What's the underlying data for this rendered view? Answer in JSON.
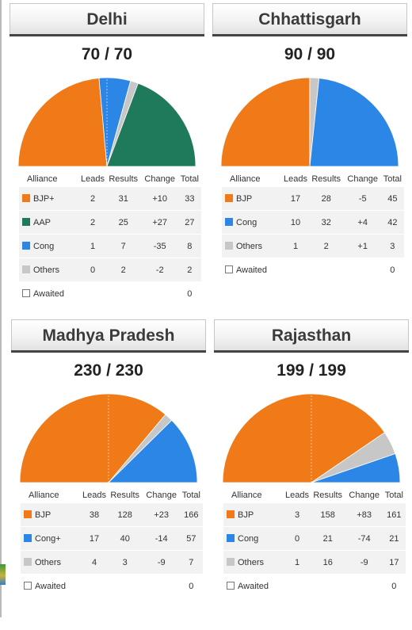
{
  "headers": [
    "Alliance",
    "Leads",
    "Results",
    "Change",
    "Total"
  ],
  "chart_data": [
    {
      "type": "pie",
      "title": "Delhi",
      "seats_declared": "70 / 70",
      "max": 70,
      "slices": [
        {
          "name": "BJP+",
          "value": 33,
          "color": "#f07a17"
        },
        {
          "name": "Cong",
          "value": 8,
          "color": "#2c86e6"
        },
        {
          "name": "Others",
          "value": 2,
          "color": "#c7c7c7"
        },
        {
          "name": "AAP",
          "value": 27,
          "color": "#1f7a5c"
        }
      ],
      "rows": [
        {
          "alliance": "BJP+",
          "leads": "2",
          "results": "31",
          "change": "+10",
          "total": "33",
          "color": "#f07a17"
        },
        {
          "alliance": "AAP",
          "leads": "2",
          "results": "25",
          "change": "+27",
          "total": "27",
          "color": "#1f7a5c"
        },
        {
          "alliance": "Cong",
          "leads": "1",
          "results": "7",
          "change": "-35",
          "total": "8",
          "color": "#2c86e6"
        },
        {
          "alliance": "Others",
          "leads": "0",
          "results": "2",
          "change": "-2",
          "total": "2",
          "color": "#c7c7c7"
        },
        {
          "alliance": "Awaited",
          "leads": "",
          "results": "",
          "change": "",
          "total": "0",
          "color": ""
        }
      ]
    },
    {
      "type": "pie",
      "title": "Chhattisgarh",
      "seats_declared": "90 / 90",
      "max": 90,
      "slices": [
        {
          "name": "BJP",
          "value": 45,
          "color": "#f07a17"
        },
        {
          "name": "Others",
          "value": 3,
          "color": "#c7c7c7"
        },
        {
          "name": "Cong",
          "value": 42,
          "color": "#2c86e6"
        }
      ],
      "rows": [
        {
          "alliance": "BJP",
          "leads": "17",
          "results": "28",
          "change": "-5",
          "total": "45",
          "color": "#f07a17"
        },
        {
          "alliance": "Cong",
          "leads": "10",
          "results": "32",
          "change": "+4",
          "total": "42",
          "color": "#2c86e6"
        },
        {
          "alliance": "Others",
          "leads": "1",
          "results": "2",
          "change": "+1",
          "total": "3",
          "color": "#c7c7c7"
        },
        {
          "alliance": "Awaited",
          "leads": "",
          "results": "",
          "change": "",
          "total": "0",
          "color": ""
        }
      ]
    },
    {
      "type": "pie",
      "title": "Madhya Pradesh",
      "seats_declared": "230 / 230",
      "max": 230,
      "slices": [
        {
          "name": "BJP",
          "value": 166,
          "color": "#f07a17"
        },
        {
          "name": "Others",
          "value": 7,
          "color": "#c7c7c7"
        },
        {
          "name": "Cong+",
          "value": 57,
          "color": "#2c86e6"
        }
      ],
      "rows": [
        {
          "alliance": "BJP",
          "leads": "38",
          "results": "128",
          "change": "+23",
          "total": "166",
          "color": "#f07a17"
        },
        {
          "alliance": "Cong+",
          "leads": "17",
          "results": "40",
          "change": "-14",
          "total": "57",
          "color": "#2c86e6"
        },
        {
          "alliance": "Others",
          "leads": "4",
          "results": "3",
          "change": "-9",
          "total": "7",
          "color": "#c7c7c7"
        },
        {
          "alliance": "Awaited",
          "leads": "",
          "results": "",
          "change": "",
          "total": "0",
          "color": ""
        }
      ]
    },
    {
      "type": "pie",
      "title": "Rajasthan",
      "seats_declared": "199 / 199",
      "max": 199,
      "slices": [
        {
          "name": "BJP",
          "value": 161,
          "color": "#f07a17"
        },
        {
          "name": "Others",
          "value": 17,
          "color": "#c7c7c7"
        },
        {
          "name": "Cong",
          "value": 21,
          "color": "#2c86e6"
        }
      ],
      "rows": [
        {
          "alliance": "BJP",
          "leads": "3",
          "results": "158",
          "change": "+83",
          "total": "161",
          "color": "#f07a17"
        },
        {
          "alliance": "Cong",
          "leads": "0",
          "results": "21",
          "change": "-74",
          "total": "21",
          "color": "#2c86e6"
        },
        {
          "alliance": "Others",
          "leads": "1",
          "results": "16",
          "change": "-9",
          "total": "17",
          "color": "#c7c7c7"
        },
        {
          "alliance": "Awaited",
          "leads": "",
          "results": "",
          "change": "",
          "total": "0",
          "color": ""
        }
      ]
    }
  ]
}
